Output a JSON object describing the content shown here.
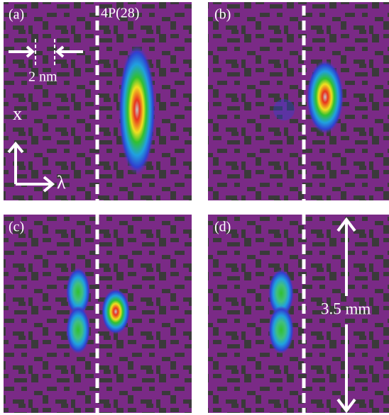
{
  "panels": [
    {
      "label": "(a)",
      "line_label": "4P(28)"
    },
    {
      "label": "(b)"
    },
    {
      "label": "(c)"
    },
    {
      "label": "(d)"
    }
  ],
  "annotations": {
    "scale": "2 nm",
    "axis_x": "x",
    "axis_lambda": "λ",
    "height": "3.5 mm"
  }
}
